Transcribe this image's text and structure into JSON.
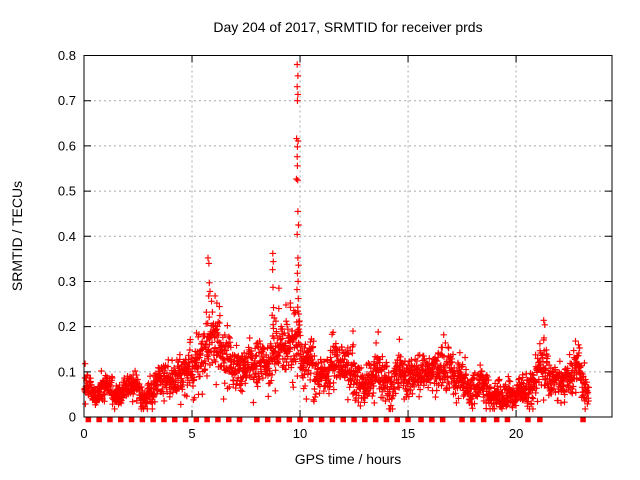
{
  "chart_data": {
    "type": "scatter",
    "title": "Day 204 of 2017, SRMTID for receiver prds",
    "xlabel": "GPS time / hours",
    "ylabel": "SRMTID / TECUs",
    "xlim": [
      0,
      24.44
    ],
    "ylim": [
      0,
      0.8
    ],
    "x_ticks": [
      0,
      5,
      10,
      15,
      20
    ],
    "x_tick_labels": [
      "0",
      "5",
      "10",
      "15",
      "20"
    ],
    "y_ticks": [
      0,
      0.1,
      0.2,
      0.3,
      0.4,
      0.5,
      0.6,
      0.7,
      0.8
    ],
    "y_tick_labels": [
      "0",
      "0.1",
      "0.2",
      "0.3",
      "0.4",
      "0.5",
      "0.6",
      "0.7",
      "0.8"
    ],
    "grid": {
      "show": true,
      "color": "#a8a8a8",
      "dash": "2 3"
    },
    "legend": null,
    "colors": {
      "points": "#ff0000",
      "axis": "#000000",
      "text": "#000000",
      "background": "#ffffff"
    },
    "marker": {
      "shape": "plus",
      "size": 7
    },
    "series": [
      {
        "name": "srmtid-scatter",
        "kind": "generated-band",
        "seed": 20417,
        "x_start": 0.02,
        "x_end": 23.36,
        "x_step": 0.01,
        "envelope_x_mid_amp": [
          [
            0.0,
            0.065,
            0.045
          ],
          [
            0.4,
            0.055,
            0.032
          ],
          [
            1.0,
            0.062,
            0.036
          ],
          [
            1.6,
            0.055,
            0.032
          ],
          [
            2.2,
            0.06,
            0.035
          ],
          [
            2.8,
            0.052,
            0.03
          ],
          [
            3.4,
            0.06,
            0.035
          ],
          [
            4.0,
            0.065,
            0.04
          ],
          [
            4.6,
            0.08,
            0.05
          ],
          [
            5.1,
            0.1,
            0.06
          ],
          [
            5.55,
            0.13,
            0.08
          ],
          [
            5.8,
            0.17,
            0.1
          ],
          [
            6.1,
            0.16,
            0.09
          ],
          [
            6.4,
            0.13,
            0.08
          ],
          [
            6.9,
            0.1,
            0.06
          ],
          [
            7.4,
            0.11,
            0.06
          ],
          [
            7.9,
            0.12,
            0.065
          ],
          [
            8.4,
            0.13,
            0.07
          ],
          [
            8.75,
            0.15,
            0.08
          ],
          [
            9.1,
            0.14,
            0.075
          ],
          [
            9.5,
            0.16,
            0.08
          ],
          [
            9.85,
            0.17,
            0.09
          ],
          [
            10.1,
            0.12,
            0.07
          ],
          [
            10.6,
            0.1,
            0.06
          ],
          [
            11.0,
            0.08,
            0.05
          ],
          [
            11.5,
            0.11,
            0.065
          ],
          [
            12.0,
            0.085,
            0.055
          ],
          [
            12.5,
            0.11,
            0.065
          ],
          [
            13.0,
            0.08,
            0.05
          ],
          [
            13.6,
            0.105,
            0.065
          ],
          [
            14.1,
            0.085,
            0.05
          ],
          [
            14.6,
            0.1,
            0.06
          ],
          [
            15.1,
            0.08,
            0.05
          ],
          [
            15.6,
            0.09,
            0.055
          ],
          [
            16.1,
            0.085,
            0.05
          ],
          [
            16.6,
            0.1,
            0.06
          ],
          [
            17.1,
            0.09,
            0.055
          ],
          [
            17.6,
            0.095,
            0.055
          ],
          [
            18.1,
            0.07,
            0.04
          ],
          [
            18.6,
            0.06,
            0.035
          ],
          [
            19.2,
            0.055,
            0.03
          ],
          [
            19.8,
            0.055,
            0.032
          ],
          [
            20.3,
            0.06,
            0.035
          ],
          [
            20.8,
            0.075,
            0.05
          ],
          [
            21.25,
            0.13,
            0.085
          ],
          [
            21.55,
            0.09,
            0.055
          ],
          [
            22.0,
            0.075,
            0.045
          ],
          [
            22.4,
            0.085,
            0.05
          ],
          [
            22.75,
            0.105,
            0.06
          ],
          [
            23.05,
            0.085,
            0.05
          ],
          [
            23.35,
            0.07,
            0.04
          ]
        ]
      },
      {
        "name": "high-outliers",
        "kind": "points",
        "points": [
          [
            9.87,
            0.78
          ],
          [
            9.9,
            0.755
          ],
          [
            9.87,
            0.731
          ],
          [
            9.9,
            0.714
          ],
          [
            9.88,
            0.7
          ],
          [
            9.84,
            0.616
          ],
          [
            9.91,
            0.611
          ],
          [
            9.88,
            0.598
          ],
          [
            9.87,
            0.576
          ],
          [
            9.88,
            0.556
          ],
          [
            9.83,
            0.527
          ],
          [
            9.89,
            0.524
          ],
          [
            9.9,
            0.455
          ],
          [
            9.93,
            0.425
          ],
          [
            9.87,
            0.404
          ],
          [
            9.9,
            0.352
          ],
          [
            9.93,
            0.336
          ],
          [
            9.88,
            0.318
          ],
          [
            9.91,
            0.3
          ],
          [
            9.86,
            0.282
          ],
          [
            9.92,
            0.262
          ],
          [
            9.89,
            0.243
          ],
          [
            9.94,
            0.228
          ],
          [
            9.85,
            0.21
          ],
          [
            8.74,
            0.362
          ],
          [
            8.76,
            0.344
          ],
          [
            8.73,
            0.326
          ],
          [
            8.75,
            0.287
          ],
          [
            8.77,
            0.242
          ],
          [
            8.71,
            0.225
          ],
          [
            5.74,
            0.352
          ],
          [
            5.78,
            0.34
          ],
          [
            5.8,
            0.297
          ],
          [
            5.83,
            0.278
          ],
          [
            5.77,
            0.268
          ],
          [
            5.9,
            0.256
          ],
          [
            6.07,
            0.268
          ],
          [
            6.15,
            0.252
          ],
          [
            9.02,
            0.285
          ],
          [
            9.35,
            0.248
          ],
          [
            9.55,
            0.252
          ],
          [
            0.05,
            0.118
          ],
          [
            12.45,
            0.19
          ],
          [
            13.62,
            0.188
          ],
          [
            11.48,
            0.183
          ],
          [
            16.65,
            0.182
          ],
          [
            14.6,
            0.172
          ],
          [
            21.28,
            0.214
          ],
          [
            21.33,
            0.204
          ],
          [
            22.75,
            0.168
          ]
        ]
      },
      {
        "name": "zero-flags",
        "kind": "squares",
        "y": 0,
        "size": 5.5,
        "x": [
          0.2,
          0.7,
          1.2,
          1.7,
          2.2,
          2.7,
          3.2,
          3.7,
          4.2,
          4.7,
          5.2,
          5.7,
          6.2,
          6.7,
          7.2,
          8.0,
          8.5,
          9.0,
          9.5,
          10.0,
          10.5,
          11.0,
          11.5,
          12.0,
          12.5,
          13.0,
          13.5,
          14.0,
          14.5,
          15.0,
          15.6,
          16.1,
          16.6,
          17.5,
          18.0,
          18.5,
          19.1,
          19.6,
          20.55,
          21.1,
          23.1
        ]
      }
    ]
  }
}
